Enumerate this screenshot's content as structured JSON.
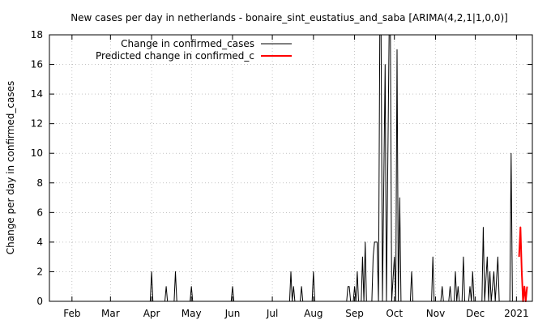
{
  "chart_data": {
    "type": "line",
    "title": "New cases per day in netherlands - bonaire_sint_eustatius_and_saba [ARIMA(4,2,1|1,0,0)]",
    "xlabel": "",
    "ylabel": "Change per day in confirmed_cases",
    "xlim": [
      "2020-01-15",
      "2021-01-13"
    ],
    "ylim": [
      0,
      18
    ],
    "yticks": [
      0,
      2,
      4,
      6,
      8,
      10,
      12,
      14,
      16,
      18
    ],
    "xticks": [
      {
        "label": "Feb",
        "date": "2020-02-01"
      },
      {
        "label": "Mar",
        "date": "2020-03-01"
      },
      {
        "label": "Apr",
        "date": "2020-04-01"
      },
      {
        "label": "May",
        "date": "2020-05-01"
      },
      {
        "label": "Jun",
        "date": "2020-06-01"
      },
      {
        "label": "Jul",
        "date": "2020-07-01"
      },
      {
        "label": "Aug",
        "date": "2020-08-01"
      },
      {
        "label": "Sep",
        "date": "2020-09-01"
      },
      {
        "label": "Oct",
        "date": "2020-10-01"
      },
      {
        "label": "Nov",
        "date": "2020-11-01"
      },
      {
        "label": "Dec",
        "date": "2020-12-01"
      },
      {
        "label": "2021",
        "date": "2021-01-01"
      }
    ],
    "grid": true,
    "legend_position": "top-left",
    "series": [
      {
        "name": "Change in confirmed_cases",
        "color": "#000000",
        "points": [
          [
            "2020-01-15",
            0
          ],
          [
            "2020-03-31",
            0
          ],
          [
            "2020-04-01",
            2
          ],
          [
            "2020-04-02",
            0
          ],
          [
            "2020-04-11",
            0
          ],
          [
            "2020-04-12",
            1
          ],
          [
            "2020-04-13",
            0
          ],
          [
            "2020-04-18",
            0
          ],
          [
            "2020-04-19",
            2
          ],
          [
            "2020-04-20",
            0
          ],
          [
            "2020-04-30",
            0
          ],
          [
            "2020-05-01",
            1
          ],
          [
            "2020-05-02",
            0
          ],
          [
            "2020-05-31",
            0
          ],
          [
            "2020-06-01",
            1
          ],
          [
            "2020-06-02",
            0
          ],
          [
            "2020-07-14",
            0
          ],
          [
            "2020-07-15",
            2
          ],
          [
            "2020-07-16",
            0
          ],
          [
            "2020-07-17",
            1
          ],
          [
            "2020-07-18",
            0
          ],
          [
            "2020-07-22",
            0
          ],
          [
            "2020-07-23",
            1
          ],
          [
            "2020-07-24",
            0
          ],
          [
            "2020-07-31",
            0
          ],
          [
            "2020-08-01",
            2
          ],
          [
            "2020-08-02",
            0
          ],
          [
            "2020-08-26",
            0
          ],
          [
            "2020-08-27",
            1
          ],
          [
            "2020-08-28",
            1
          ],
          [
            "2020-08-29",
            0
          ],
          [
            "2020-08-31",
            0
          ],
          [
            "2020-09-01",
            1
          ],
          [
            "2020-09-02",
            0
          ],
          [
            "2020-09-03",
            2
          ],
          [
            "2020-09-04",
            0
          ],
          [
            "2020-09-06",
            0
          ],
          [
            "2020-09-07",
            3
          ],
          [
            "2020-09-08",
            0
          ],
          [
            "2020-09-09",
            4
          ],
          [
            "2020-09-10",
            0
          ],
          [
            "2020-09-14",
            0
          ],
          [
            "2020-09-15",
            3
          ],
          [
            "2020-09-16",
            4
          ],
          [
            "2020-09-18",
            4
          ],
          [
            "2020-09-19",
            0
          ],
          [
            "2020-09-20",
            18
          ],
          [
            "2020-09-21",
            18
          ],
          [
            "2020-09-22",
            0
          ],
          [
            "2020-09-24",
            16
          ],
          [
            "2020-09-25",
            0
          ],
          [
            "2020-09-27",
            18
          ],
          [
            "2020-09-28",
            18
          ],
          [
            "2020-09-29",
            0
          ],
          [
            "2020-10-01",
            3
          ],
          [
            "2020-10-02",
            0
          ],
          [
            "2020-10-03",
            17
          ],
          [
            "2020-10-04",
            0
          ],
          [
            "2020-10-05",
            7
          ],
          [
            "2020-10-06",
            0
          ],
          [
            "2020-10-13",
            0
          ],
          [
            "2020-10-14",
            2
          ],
          [
            "2020-10-15",
            0
          ],
          [
            "2020-10-29",
            0
          ],
          [
            "2020-10-30",
            3
          ],
          [
            "2020-10-31",
            0
          ],
          [
            "2020-11-05",
            0
          ],
          [
            "2020-11-06",
            1
          ],
          [
            "2020-11-07",
            0
          ],
          [
            "2020-11-11",
            0
          ],
          [
            "2020-11-12",
            1
          ],
          [
            "2020-11-13",
            0
          ],
          [
            "2020-11-15",
            0
          ],
          [
            "2020-11-16",
            2
          ],
          [
            "2020-11-17",
            0
          ],
          [
            "2020-11-18",
            1
          ],
          [
            "2020-11-19",
            0
          ],
          [
            "2020-11-21",
            0
          ],
          [
            "2020-11-22",
            3
          ],
          [
            "2020-11-23",
            0
          ],
          [
            "2020-11-26",
            0
          ],
          [
            "2020-11-27",
            1
          ],
          [
            "2020-11-28",
            0
          ],
          [
            "2020-11-29",
            2
          ],
          [
            "2020-11-30",
            0
          ],
          [
            "2020-12-06",
            0
          ],
          [
            "2020-12-07",
            5
          ],
          [
            "2020-12-08",
            0
          ],
          [
            "2020-12-10",
            3
          ],
          [
            "2020-12-11",
            0
          ],
          [
            "2020-12-12",
            2
          ],
          [
            "2020-12-13",
            0
          ],
          [
            "2020-12-15",
            2
          ],
          [
            "2020-12-16",
            0
          ],
          [
            "2020-12-18",
            3
          ],
          [
            "2020-12-19",
            0
          ],
          [
            "2020-12-27",
            0
          ],
          [
            "2020-12-28",
            10
          ],
          [
            "2020-12-29",
            0
          ],
          [
            "2021-01-02",
            0
          ]
        ]
      },
      {
        "name": "Predicted change in confirmed_c",
        "color": "#ff0000",
        "points": [
          [
            "2021-01-03",
            3
          ],
          [
            "2021-01-04",
            5
          ],
          [
            "2021-01-05",
            2
          ],
          [
            "2021-01-06",
            0
          ],
          [
            "2021-01-07",
            1
          ],
          [
            "2021-01-08",
            0
          ],
          [
            "2021-01-09",
            1
          ]
        ]
      }
    ]
  }
}
